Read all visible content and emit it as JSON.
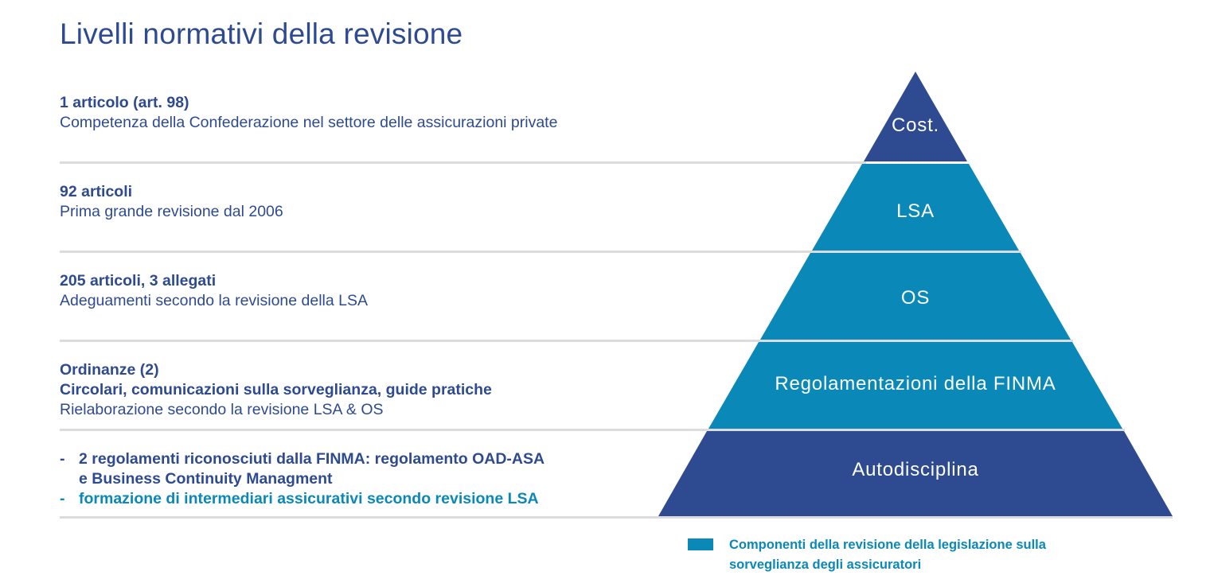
{
  "title": "Livelli normativi della revisione",
  "rows": [
    {
      "line1": "1 articolo (art. 98)",
      "line2": "Competenza della Confederazione nel settore delle assicurazioni private"
    },
    {
      "line1": "92 articoli",
      "line2": "Prima grande revisione dal 2006"
    },
    {
      "line1": "205 articoli, 3 allegati",
      "line2": "Adeguamenti secondo la revisione della LSA"
    },
    {
      "line1": "Ordinanze (2)",
      "line1b": "Circolari, comunicazioni sulla sorveglianza, guide pratiche",
      "line2": "Rielaborazione secondo la revisione LSA & OS"
    }
  ],
  "bullets": [
    {
      "dash": "-",
      "text": "2 regolamenti riconosciuti dalla FINMA: regolamento OAD-ASA",
      "text2": "e Business Continuity Managment"
    },
    {
      "dash": "-",
      "text": "formazione di intermediari assicurativi secondo revisione LSA"
    }
  ],
  "pyramid": {
    "levels": [
      {
        "label": "Cost.",
        "color": "#2e4a91"
      },
      {
        "label": "LSA",
        "color": "#0a88b8"
      },
      {
        "label": "OS",
        "color": "#0a88b8"
      },
      {
        "label": "Regolamentazioni della FINMA",
        "color": "#0a88b8"
      },
      {
        "label": "Autodisciplina",
        "color": "#2e4a91"
      }
    ]
  },
  "legend": {
    "color": "#0a88b8",
    "text": "Componenti della revisione della legislazione sulla sorveglianza degli assicuratori"
  },
  "colors": {
    "dark_blue": "#2e4a91",
    "accent_blue": "#0a88b8",
    "divider": "#dcdcdc"
  }
}
